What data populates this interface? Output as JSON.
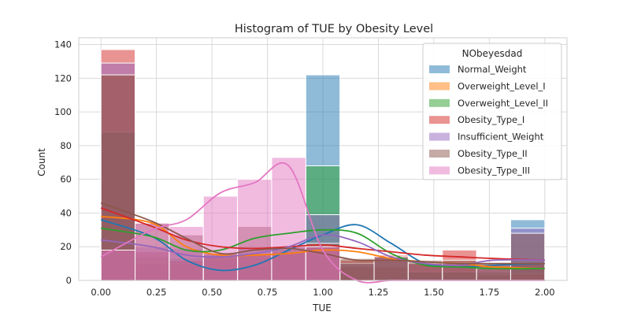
{
  "chart_data": {
    "type": "histogram",
    "title": "Histogram of TUE by Obesity Level",
    "xlabel": "TUE",
    "ylabel": "Count",
    "xlim": [
      -0.1,
      2.1
    ],
    "ylim": [
      0,
      144
    ],
    "xticks": [
      "0.00",
      "0.25",
      "0.50",
      "0.75",
      "1.00",
      "1.25",
      "1.50",
      "1.75",
      "2.00"
    ],
    "yticks": [
      "0",
      "20",
      "40",
      "60",
      "80",
      "100",
      "120",
      "140"
    ],
    "grid": true,
    "legend_position": "top-right",
    "legend_title": "NObeyesdad",
    "bin_edges": [
      0.0,
      0.1538,
      0.3077,
      0.4615,
      0.6154,
      0.7692,
      0.9231,
      1.0769,
      1.2308,
      1.3846,
      1.5385,
      1.6923,
      1.8462,
      2.0
    ],
    "series": [
      {
        "name": "Normal_Weight",
        "color": "#1f77b4",
        "counts": [
          88,
          10,
          13,
          12,
          7,
          18,
          122,
          8,
          8,
          5,
          5,
          3,
          36
        ],
        "kde": [
          36,
          26,
          12,
          6,
          9,
          18,
          27,
          33,
          22,
          10,
          8,
          9,
          10
        ]
      },
      {
        "name": "Overweight_Level_I",
        "color": "#ff7f0e",
        "counts": [
          122,
          10,
          10,
          14,
          15,
          16,
          20,
          8,
          8,
          10,
          8,
          3,
          4
        ],
        "kde": [
          38,
          34,
          20,
          15,
          15,
          16,
          18,
          17,
          13,
          11,
          10,
          8,
          7
        ]
      },
      {
        "name": "Overweight_Level_II",
        "color": "#2ca02c",
        "counts": [
          88,
          14,
          13,
          14,
          16,
          18,
          68,
          10,
          12,
          5,
          5,
          5,
          10
        ],
        "kde": [
          31,
          26,
          18,
          18,
          25,
          28,
          30,
          28,
          16,
          9,
          8,
          7,
          7
        ]
      },
      {
        "name": "Obesity_Type_I",
        "color": "#d62728",
        "counts": [
          137,
          17,
          12,
          15,
          15,
          17,
          20,
          12,
          15,
          10,
          18,
          9,
          10
        ],
        "kde": [
          43,
          32,
          24,
          20,
          19,
          20,
          21,
          19,
          17,
          15,
          14,
          13,
          12
        ]
      },
      {
        "name": "Insufficient_Weight",
        "color": "#9467bd",
        "counts": [
          129,
          20,
          19,
          16,
          19,
          20,
          39,
          10,
          14,
          10,
          10,
          7,
          31
        ],
        "kde": [
          24,
          20,
          15,
          14,
          16,
          20,
          27,
          23,
          14,
          10,
          9,
          12,
          12
        ]
      },
      {
        "name": "Obesity_Type_II",
        "color": "#8c564b",
        "counts": [
          122,
          34,
          27,
          16,
          32,
          20,
          22,
          13,
          14,
          12,
          12,
          10,
          28
        ],
        "kde": [
          46,
          35,
          25,
          16,
          18,
          19,
          16,
          12,
          12,
          11,
          10,
          10,
          10
        ]
      },
      {
        "name": "Obesity_Type_III",
        "color": "#e377c2",
        "counts": [
          18,
          34,
          32,
          50,
          60,
          73,
          20,
          0,
          0,
          0,
          0,
          0,
          0
        ],
        "kde": [
          14,
          30,
          36,
          52,
          58,
          68,
          18,
          0,
          0,
          0,
          0,
          0,
          0
        ]
      }
    ]
  }
}
